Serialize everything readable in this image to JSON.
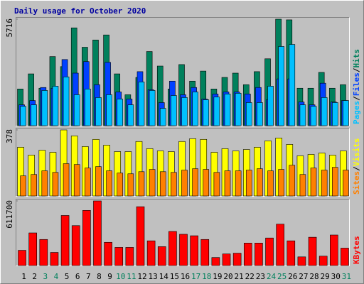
{
  "title": "Daily usage for October 2020",
  "legend_separator": "/",
  "chart_data": [
    {
      "type": "bar",
      "ylim": [
        0,
        5716
      ],
      "yticks": [
        5716
      ],
      "series": [
        {
          "name": "Hits",
          "color": "#00805c",
          "values": [
            1970,
            2780,
            2010,
            3710,
            3170,
            5250,
            4210,
            4600,
            4870,
            2780,
            1660,
            2590,
            3980,
            3200,
            1970,
            3280,
            2390,
            2930,
            1970,
            2590,
            2820,
            2200,
            2900,
            3590,
            5716,
            5680,
            2010,
            2010,
            2860,
            2010,
            2200
          ]
        },
        {
          "name": "Files",
          "color": "#0040ff",
          "values": [
            1120,
            1350,
            2050,
            2010,
            3550,
            2820,
            3440,
            2200,
            3400,
            1810,
            1430,
            2900,
            1930,
            1240,
            2390,
            1660,
            2050,
            1430,
            1700,
            1810,
            1810,
            1700,
            2050,
            1390,
            2510,
            2510,
            1270,
            1120,
            2280,
            1270,
            1350
          ]
        },
        {
          "name": "Pages",
          "color": "#00c0ff",
          "values": [
            1040,
            1120,
            1890,
            2120,
            2620,
            1660,
            1970,
            1510,
            1660,
            1430,
            1120,
            2350,
            1890,
            930,
            1620,
            1510,
            1810,
            1390,
            1540,
            1700,
            1740,
            1240,
            1240,
            2120,
            4250,
            4360,
            1120,
            1040,
            1510,
            1240,
            1350
          ]
        }
      ]
    },
    {
      "type": "bar",
      "ylim": [
        0,
        378
      ],
      "yticks": [
        378
      ],
      "series": [
        {
          "name": "Visits",
          "color": "#ffff00",
          "values": [
            279,
            234,
            262,
            250,
            378,
            344,
            283,
            324,
            291,
            254,
            254,
            312,
            271,
            258,
            254,
            312,
            328,
            324,
            250,
            271,
            258,
            266,
            279,
            316,
            332,
            295,
            230,
            238,
            246,
            234,
            258
          ]
        },
        {
          "name": "Sites",
          "color": "#ff8000",
          "values": [
            115,
            123,
            144,
            135,
            185,
            180,
            160,
            168,
            144,
            131,
            127,
            139,
            152,
            139,
            135,
            148,
            156,
            152,
            135,
            144,
            144,
            148,
            156,
            144,
            152,
            176,
            123,
            160,
            148,
            164,
            148
          ]
        }
      ]
    },
    {
      "type": "bar",
      "ylim": [
        0,
        611700
      ],
      "yticks": [
        611700
      ],
      "categories": [
        "1",
        "2",
        "3",
        "4",
        "5",
        "6",
        "7",
        "8",
        "9",
        "10",
        "11",
        "12",
        "13",
        "14",
        "15",
        "16",
        "17",
        "18",
        "19",
        "20",
        "21",
        "22",
        "23",
        "24",
        "25",
        "26",
        "27",
        "28",
        "29",
        "30",
        "31"
      ],
      "category_colors": [
        "#000000",
        "#000000",
        "#00805c",
        "#00805c",
        "#000000",
        "#000000",
        "#000000",
        "#000000",
        "#000000",
        "#00805c",
        "#00805c",
        "#000000",
        "#000000",
        "#000000",
        "#000000",
        "#000000",
        "#00805c",
        "#00805c",
        "#000000",
        "#000000",
        "#000000",
        "#000000",
        "#000000",
        "#00805c",
        "#00805c",
        "#000000",
        "#000000",
        "#000000",
        "#000000",
        "#000000",
        "#00805c"
      ],
      "series": [
        {
          "name": "KBytes",
          "color": "#ff0000",
          "values": [
            144000,
            309000,
            247000,
            124000,
            474000,
            378000,
            522000,
            611700,
            220000,
            172000,
            172000,
            557000,
            234000,
            179000,
            323000,
            296000,
            282000,
            247000,
            76000,
            110000,
            117000,
            213000,
            213000,
            261000,
            392000,
            234000,
            82000,
            268000,
            89000,
            289000,
            165000
          ]
        }
      ]
    }
  ]
}
